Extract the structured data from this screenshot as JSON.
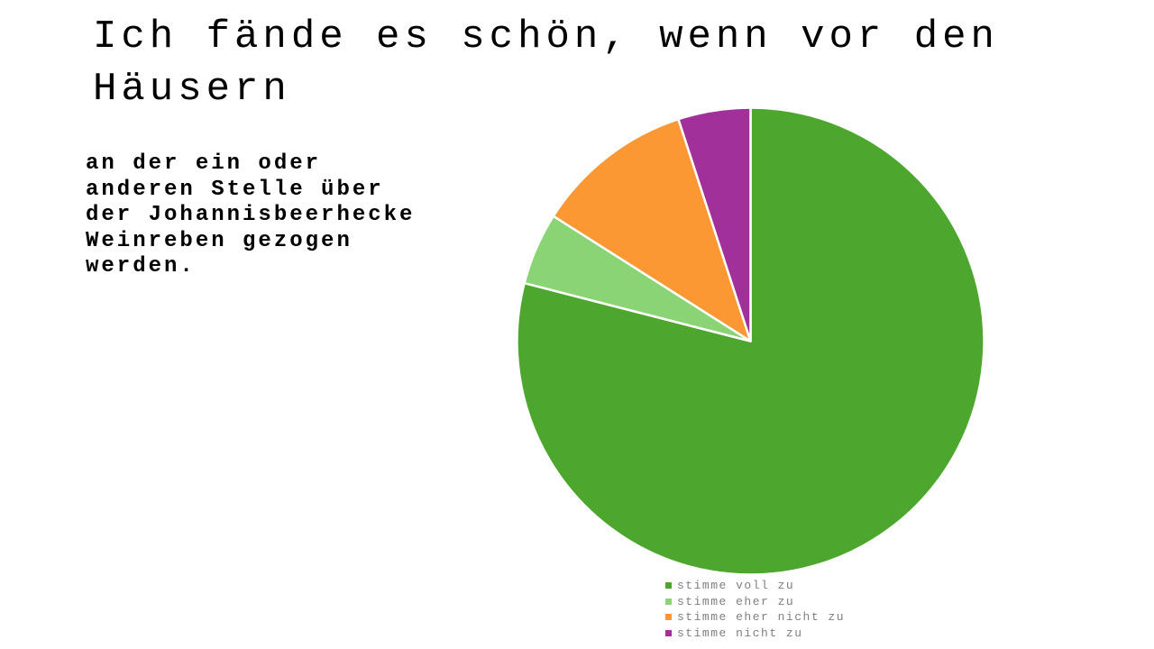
{
  "slide": {
    "title": "Ich fände es schön, wenn vor den\nHäusern",
    "body": "an der ein oder\nanderen Stelle über\nder Johannisbeerhecke\nWeinreben gezogen\nwerden."
  },
  "chart_data": {
    "type": "pie",
    "title": "",
    "categories": [
      "stimme voll zu",
      "stimme eher zu",
      "stimme eher nicht zu",
      "stimme nicht zu"
    ],
    "values": [
      79,
      5,
      11,
      5
    ],
    "values_unit": "percent (estimated from slice angles, no data labels shown)",
    "colors": [
      "#4DA72E",
      "#8BD475",
      "#FB9834",
      "#A2309B"
    ],
    "start_angle_deg": 0,
    "direction": "clockwise",
    "slice_border_color": "#ffffff",
    "legend_position": "bottom",
    "legend_text_color": "#7f7f7f"
  }
}
